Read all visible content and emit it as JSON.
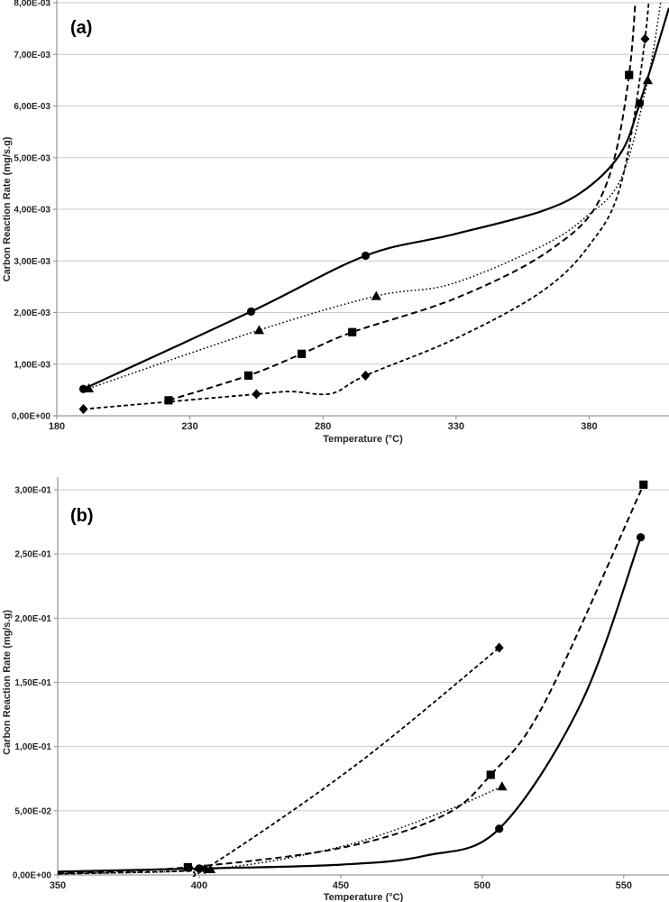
{
  "page": {
    "background": "#ffffff"
  },
  "chart_data": [
    {
      "id": "a",
      "panel_label": "(a)",
      "type": "line",
      "title": "",
      "xlabel": "Temperature (°C)",
      "ylabel": "Carbon Reaction Rate (mg/s.g)",
      "xlim": [
        180,
        410
      ],
      "ylim": [
        0,
        0.008
      ],
      "x_ticks": [
        180,
        230,
        280,
        330,
        380
      ],
      "x_tick_labels": [
        "180",
        "230",
        "280",
        "330",
        "380"
      ],
      "y_ticks": [
        0,
        0.001,
        0.002,
        0.003,
        0.004,
        0.005,
        0.006,
        0.007,
        0.008
      ],
      "y_tick_labels": [
        "0,00E+00",
        "1,00E-03",
        "2,00E-03",
        "3,00E-03",
        "4,00E-03",
        "5,00E-03",
        "6,00E-03",
        "7,00E-03",
        "8,00E-03"
      ],
      "grid": "horizontal",
      "legend": "none",
      "number_format": "comma-decimal-scientific",
      "colors": {
        "series": "#000000",
        "grid": "#c9c9c9",
        "axis": "#9b9b9b",
        "text": "#262626"
      },
      "series": [
        {
          "name": "solid-circle",
          "marker": "circle",
          "line_style": "solid",
          "color": "#000000",
          "points": [
            [
              190,
              0.00052
            ],
            [
              253,
              0.00202
            ],
            [
              296,
              0.0031
            ],
            [
              399,
              0.00605
            ]
          ],
          "curve": [
            [
              190,
              0.00052
            ],
            [
              253,
              0.00202
            ],
            [
              296,
              0.0031
            ],
            [
              328,
              0.0035
            ],
            [
              362,
              0.00396
            ],
            [
              379,
              0.0044
            ],
            [
              392,
              0.0051
            ],
            [
              399,
              0.00605
            ],
            [
              410,
              0.0079
            ]
          ]
        },
        {
          "name": "dotted-triangle",
          "marker": "triangle",
          "line_style": "dotted",
          "color": "#000000",
          "points": [
            [
              192,
              0.00053
            ],
            [
              256,
              0.00166
            ],
            [
              300,
              0.00232
            ],
            [
              402,
              0.0065
            ]
          ],
          "curve": [
            [
              192,
              0.00053
            ],
            [
              256,
              0.00166
            ],
            [
              300,
              0.00232
            ],
            [
              328,
              0.00255
            ],
            [
              362,
              0.00328
            ],
            [
              379,
              0.00386
            ],
            [
              392,
              0.0046
            ],
            [
              402,
              0.0065
            ],
            [
              408,
              0.0084
            ]
          ]
        },
        {
          "name": "dashed-square",
          "marker": "square",
          "line_style": "dashed",
          "color": "#000000",
          "points": [
            [
              222,
              0.0003
            ],
            [
              252,
              0.00078
            ],
            [
              272,
              0.0012
            ],
            [
              291,
              0.00162
            ],
            [
              395,
              0.0066
            ]
          ],
          "curve": [
            [
              222,
              0.0003
            ],
            [
              252,
              0.00078
            ],
            [
              272,
              0.0012
            ],
            [
              291,
              0.00162
            ],
            [
              330,
              0.00228
            ],
            [
              365,
              0.0032
            ],
            [
              385,
              0.0043
            ],
            [
              395,
              0.0066
            ],
            [
              399,
              0.0097
            ]
          ]
        },
        {
          "name": "short-dash-diamond",
          "marker": "diamond",
          "line_style": "short-dash",
          "color": "#000000",
          "points": [
            [
              190,
              0.00013
            ],
            [
              255,
              0.00042
            ],
            [
              296,
              0.00078
            ],
            [
              401,
              0.0073
            ]
          ],
          "curve": [
            [
              190,
              0.00013
            ],
            [
              255,
              0.00042
            ],
            [
              268,
              0.00047
            ],
            [
              283,
              0.00043
            ],
            [
              296,
              0.00078
            ],
            [
              330,
              0.0015
            ],
            [
              362,
              0.0024
            ],
            [
              380,
              0.0033
            ],
            [
              392,
              0.0045
            ],
            [
              401,
              0.0073
            ],
            [
              404.5,
              0.0097
            ]
          ]
        }
      ]
    },
    {
      "id": "b",
      "panel_label": "(b)",
      "type": "line",
      "title": "",
      "xlabel": "Temperature (°C)",
      "ylabel": "Carbon Reaction Rate (mg/s.g)",
      "xlim": [
        350,
        566
      ],
      "ylim": [
        0,
        0.3
      ],
      "x_ticks": [
        350,
        400,
        450,
        500,
        550
      ],
      "x_tick_labels": [
        "350",
        "400",
        "450",
        "500",
        "550"
      ],
      "y_ticks": [
        0,
        0.05,
        0.1,
        0.15,
        0.2,
        0.25,
        0.3
      ],
      "y_tick_labels": [
        "0,00E+00",
        "5,00E-02",
        "1,00E-01",
        "1,50E-01",
        "2,00E-01",
        "2,50E-01",
        "3,00E-01"
      ],
      "grid": "horizontal",
      "legend": "none",
      "number_format": "comma-decimal-scientific",
      "colors": {
        "series": "#000000",
        "grid": "#c9c9c9",
        "axis": "#9b9b9b",
        "text": "#262626"
      },
      "series": [
        {
          "name": "solid-circle",
          "marker": "circle",
          "line_style": "solid",
          "color": "#000000",
          "points": [
            [
              400,
              0.005
            ],
            [
              506,
              0.036
            ],
            [
              556,
              0.263
            ]
          ],
          "curve": [
            [
              350,
              0.0025
            ],
            [
              400,
              0.005
            ],
            [
              450,
              0.008
            ],
            [
              480,
              0.015
            ],
            [
              506,
              0.036
            ],
            [
              535,
              0.134
            ],
            [
              556,
              0.263
            ]
          ]
        },
        {
          "name": "dashed-square",
          "marker": "square",
          "line_style": "dashed",
          "color": "#000000",
          "points": [
            [
              396,
              0.006
            ],
            [
              503,
              0.078
            ],
            [
              557,
              0.304
            ]
          ],
          "curve": [
            [
              350,
              0.001
            ],
            [
              396,
              0.006
            ],
            [
              450,
              0.021
            ],
            [
              486,
              0.046
            ],
            [
              503,
              0.078
            ],
            [
              522,
              0.134
            ],
            [
              557,
              0.304
            ]
          ]
        },
        {
          "name": "dotted-triangle",
          "marker": "triangle",
          "line_style": "dotted",
          "color": "#000000",
          "points": [
            [
              404,
              0.0045
            ],
            [
              507,
              0.069
            ]
          ],
          "curve": [
            [
              350,
              0.001
            ],
            [
              404,
              0.0045
            ],
            [
              450,
              0.022
            ],
            [
              486,
              0.049
            ],
            [
              507,
              0.069
            ]
          ]
        },
        {
          "name": "short-dash-diamond",
          "marker": "diamond",
          "line_style": "short-dash",
          "color": "#000000",
          "points": [
            [
              402,
              0.0045
            ],
            [
              506,
              0.177
            ]
          ],
          "curve": [
            [
              350,
              0.0008
            ],
            [
              395,
              0.003
            ],
            [
              402,
              0.0045
            ],
            [
              455,
              0.085
            ],
            [
              506,
              0.177
            ]
          ]
        }
      ]
    }
  ]
}
